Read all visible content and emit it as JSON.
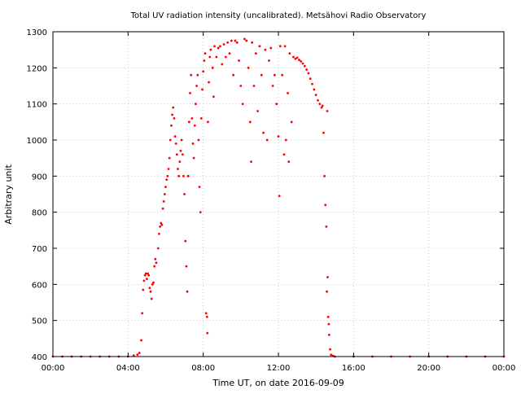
{
  "chart_data": {
    "type": "scatter",
    "title": "Total UV radiation intensity (uncalibrated). Metsähovi Radio Observatory",
    "xlabel": "Time UT, on date 2016-09-09",
    "ylabel": "Arbitrary unit",
    "xlim": [
      0,
      24
    ],
    "ylim": [
      400,
      1300
    ],
    "x_ticks": [
      {
        "value": 0,
        "label": "00:00"
      },
      {
        "value": 4,
        "label": "04:00"
      },
      {
        "value": 8,
        "label": "08:00"
      },
      {
        "value": 12,
        "label": "12:00"
      },
      {
        "value": 16,
        "label": "16:00"
      },
      {
        "value": 20,
        "label": "20:00"
      },
      {
        "value": 24,
        "label": "00:00"
      }
    ],
    "y_ticks": [
      {
        "value": 400,
        "label": "400"
      },
      {
        "value": 500,
        "label": "500"
      },
      {
        "value": 600,
        "label": "600"
      },
      {
        "value": 700,
        "label": "700"
      },
      {
        "value": 800,
        "label": "800"
      },
      {
        "value": 900,
        "label": "900"
      },
      {
        "value": 1000,
        "label": "1000"
      },
      {
        "value": 1100,
        "label": "1100"
      },
      {
        "value": 1200,
        "label": "1200"
      },
      {
        "value": 1300,
        "label": "1300"
      }
    ],
    "grid": true,
    "marker_color": "#ff0000",
    "series": [
      {
        "points": [
          [
            0.0,
            400
          ],
          [
            0.5,
            400
          ],
          [
            1.0,
            400
          ],
          [
            1.5,
            400
          ],
          [
            2.0,
            400
          ],
          [
            2.5,
            400
          ],
          [
            3.0,
            400
          ],
          [
            3.5,
            400
          ],
          [
            4.0,
            400
          ],
          [
            4.3,
            403
          ],
          [
            4.5,
            405
          ],
          [
            4.6,
            410
          ],
          [
            4.7,
            445
          ],
          [
            4.75,
            520
          ],
          [
            4.8,
            585
          ],
          [
            4.85,
            610
          ],
          [
            4.9,
            625
          ],
          [
            4.95,
            630
          ],
          [
            5.0,
            615
          ],
          [
            5.05,
            630
          ],
          [
            5.1,
            625
          ],
          [
            5.15,
            590
          ],
          [
            5.2,
            580
          ],
          [
            5.25,
            560
          ],
          [
            5.3,
            600
          ],
          [
            5.35,
            605
          ],
          [
            5.4,
            650
          ],
          [
            5.45,
            670
          ],
          [
            5.5,
            660
          ],
          [
            5.6,
            700
          ],
          [
            5.65,
            740
          ],
          [
            5.7,
            760
          ],
          [
            5.75,
            770
          ],
          [
            5.8,
            765
          ],
          [
            5.85,
            810
          ],
          [
            5.9,
            830
          ],
          [
            5.95,
            850
          ],
          [
            6.0,
            870
          ],
          [
            6.05,
            890
          ],
          [
            6.1,
            900
          ],
          [
            6.15,
            920
          ],
          [
            6.2,
            950
          ],
          [
            6.25,
            1000
          ],
          [
            6.3,
            1040
          ],
          [
            6.35,
            1070
          ],
          [
            6.4,
            1090
          ],
          [
            6.45,
            1060
          ],
          [
            6.5,
            1010
          ],
          [
            6.55,
            990
          ],
          [
            6.6,
            960
          ],
          [
            6.65,
            920
          ],
          [
            6.7,
            900
          ],
          [
            6.75,
            940
          ],
          [
            6.8,
            970
          ],
          [
            6.85,
            1000
          ],
          [
            6.9,
            960
          ],
          [
            6.95,
            900
          ],
          [
            7.0,
            850
          ],
          [
            7.05,
            720
          ],
          [
            7.1,
            650
          ],
          [
            7.15,
            580
          ],
          [
            7.2,
            900
          ],
          [
            7.25,
            1050
          ],
          [
            7.3,
            1130
          ],
          [
            7.35,
            1180
          ],
          [
            7.4,
            1060
          ],
          [
            7.45,
            990
          ],
          [
            7.5,
            950
          ],
          [
            7.55,
            1040
          ],
          [
            7.6,
            1100
          ],
          [
            7.65,
            1150
          ],
          [
            7.7,
            1180
          ],
          [
            7.75,
            1000
          ],
          [
            7.8,
            870
          ],
          [
            7.85,
            800
          ],
          [
            7.9,
            1060
          ],
          [
            7.95,
            1140
          ],
          [
            8.0,
            1190
          ],
          [
            8.05,
            1220
          ],
          [
            8.1,
            1240
          ],
          [
            8.15,
            520
          ],
          [
            8.2,
            510
          ],
          [
            8.22,
            465
          ],
          [
            8.25,
            1050
          ],
          [
            8.3,
            1160
          ],
          [
            8.35,
            1230
          ],
          [
            8.4,
            1250
          ],
          [
            8.5,
            1200
          ],
          [
            8.55,
            1120
          ],
          [
            8.6,
            1260
          ],
          [
            8.7,
            1230
          ],
          [
            8.8,
            1255
          ],
          [
            8.9,
            1260
          ],
          [
            9.0,
            1210
          ],
          [
            9.1,
            1265
          ],
          [
            9.2,
            1230
          ],
          [
            9.3,
            1270
          ],
          [
            9.4,
            1240
          ],
          [
            9.5,
            1275
          ],
          [
            9.6,
            1180
          ],
          [
            9.7,
            1275
          ],
          [
            9.8,
            1270
          ],
          [
            9.9,
            1220
          ],
          [
            10.0,
            1150
          ],
          [
            10.1,
            1100
          ],
          [
            10.2,
            1280
          ],
          [
            10.3,
            1275
          ],
          [
            10.4,
            1200
          ],
          [
            10.5,
            1050
          ],
          [
            10.55,
            940
          ],
          [
            10.6,
            1270
          ],
          [
            10.7,
            1150
          ],
          [
            10.8,
            1240
          ],
          [
            10.9,
            1080
          ],
          [
            11.0,
            1260
          ],
          [
            11.1,
            1180
          ],
          [
            11.2,
            1020
          ],
          [
            11.3,
            1250
          ],
          [
            11.4,
            1000
          ],
          [
            11.5,
            1220
          ],
          [
            11.6,
            1255
          ],
          [
            11.7,
            1150
          ],
          [
            11.8,
            1180
          ],
          [
            11.9,
            1100
          ],
          [
            12.0,
            1010
          ],
          [
            12.05,
            845
          ],
          [
            12.1,
            1260
          ],
          [
            12.2,
            1180
          ],
          [
            12.3,
            960
          ],
          [
            12.35,
            1260
          ],
          [
            12.4,
            1000
          ],
          [
            12.5,
            1130
          ],
          [
            12.55,
            940
          ],
          [
            12.6,
            1240
          ],
          [
            12.7,
            1050
          ],
          [
            12.8,
            1230
          ],
          [
            12.9,
            1225
          ],
          [
            13.0,
            1228
          ],
          [
            13.1,
            1222
          ],
          [
            13.2,
            1218
          ],
          [
            13.3,
            1212
          ],
          [
            13.4,
            1205
          ],
          [
            13.5,
            1195
          ],
          [
            13.6,
            1185
          ],
          [
            13.7,
            1170
          ],
          [
            13.8,
            1155
          ],
          [
            13.9,
            1140
          ],
          [
            14.0,
            1125
          ],
          [
            14.1,
            1110
          ],
          [
            14.2,
            1100
          ],
          [
            14.3,
            1090
          ],
          [
            14.35,
            1095
          ],
          [
            14.4,
            1020
          ],
          [
            14.45,
            900
          ],
          [
            14.5,
            820
          ],
          [
            14.55,
            760
          ],
          [
            14.58,
            580
          ],
          [
            14.6,
            1080
          ],
          [
            14.62,
            620
          ],
          [
            14.65,
            510
          ],
          [
            14.68,
            490
          ],
          [
            14.7,
            460
          ],
          [
            14.75,
            420
          ],
          [
            14.8,
            405
          ],
          [
            14.9,
            402
          ],
          [
            15.0,
            400
          ],
          [
            16.0,
            400
          ],
          [
            17.0,
            400
          ],
          [
            18.0,
            400
          ],
          [
            19.0,
            400
          ],
          [
            20.0,
            400
          ],
          [
            21.0,
            400
          ],
          [
            22.0,
            400
          ],
          [
            23.0,
            400
          ],
          [
            24.0,
            400
          ]
        ]
      }
    ]
  }
}
